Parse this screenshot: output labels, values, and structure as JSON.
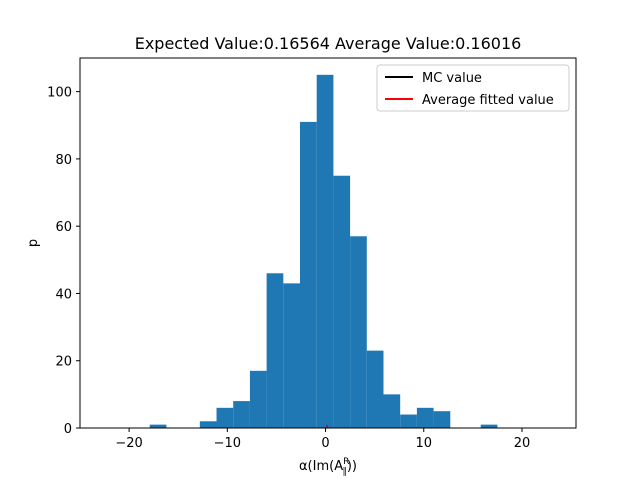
{
  "chart_data": {
    "type": "bar",
    "title": "Expected Value:0.16564 Average Value:0.16016",
    "xlabel_prefix": "α(Im(A",
    "xlabel_sup": "R",
    "xlabel_sub": "∥",
    "xlabel_suffix": "))",
    "ylabel": "p",
    "xlim": [
      -25.0,
      25.5
    ],
    "ylim": [
      0,
      110
    ],
    "xticks": [
      -20,
      -10,
      0,
      10,
      20
    ],
    "yticks": [
      0,
      20,
      40,
      60,
      80,
      100
    ],
    "bin_width": 1.7,
    "bins": [
      {
        "x": -17.9,
        "value": 1
      },
      {
        "x": -12.8,
        "value": 2
      },
      {
        "x": -11.1,
        "value": 6
      },
      {
        "x": -9.4,
        "value": 8
      },
      {
        "x": -7.7,
        "value": 17
      },
      {
        "x": -6.0,
        "value": 46
      },
      {
        "x": -4.3,
        "value": 43
      },
      {
        "x": -2.6,
        "value": 91
      },
      {
        "x": -0.9,
        "value": 105
      },
      {
        "x": 0.8,
        "value": 75
      },
      {
        "x": 2.5,
        "value": 57
      },
      {
        "x": 4.2,
        "value": 23
      },
      {
        "x": 5.9,
        "value": 10
      },
      {
        "x": 7.6,
        "value": 4
      },
      {
        "x": 9.3,
        "value": 6
      },
      {
        "x": 11.0,
        "value": 5
      },
      {
        "x": 15.8,
        "value": 1
      }
    ],
    "bar_color": "#1f77b4",
    "vlines": [
      {
        "name": "MC value",
        "x": 0.16564,
        "color": "#000000"
      },
      {
        "name": "Average fitted value",
        "x": 0.16016,
        "color": "#ff0000"
      }
    ],
    "legend": {
      "placement": "top-right",
      "entries": [
        {
          "label": "MC value",
          "color": "#000000"
        },
        {
          "label": "Average fitted value",
          "color": "#ff0000"
        }
      ]
    },
    "grid": false
  }
}
